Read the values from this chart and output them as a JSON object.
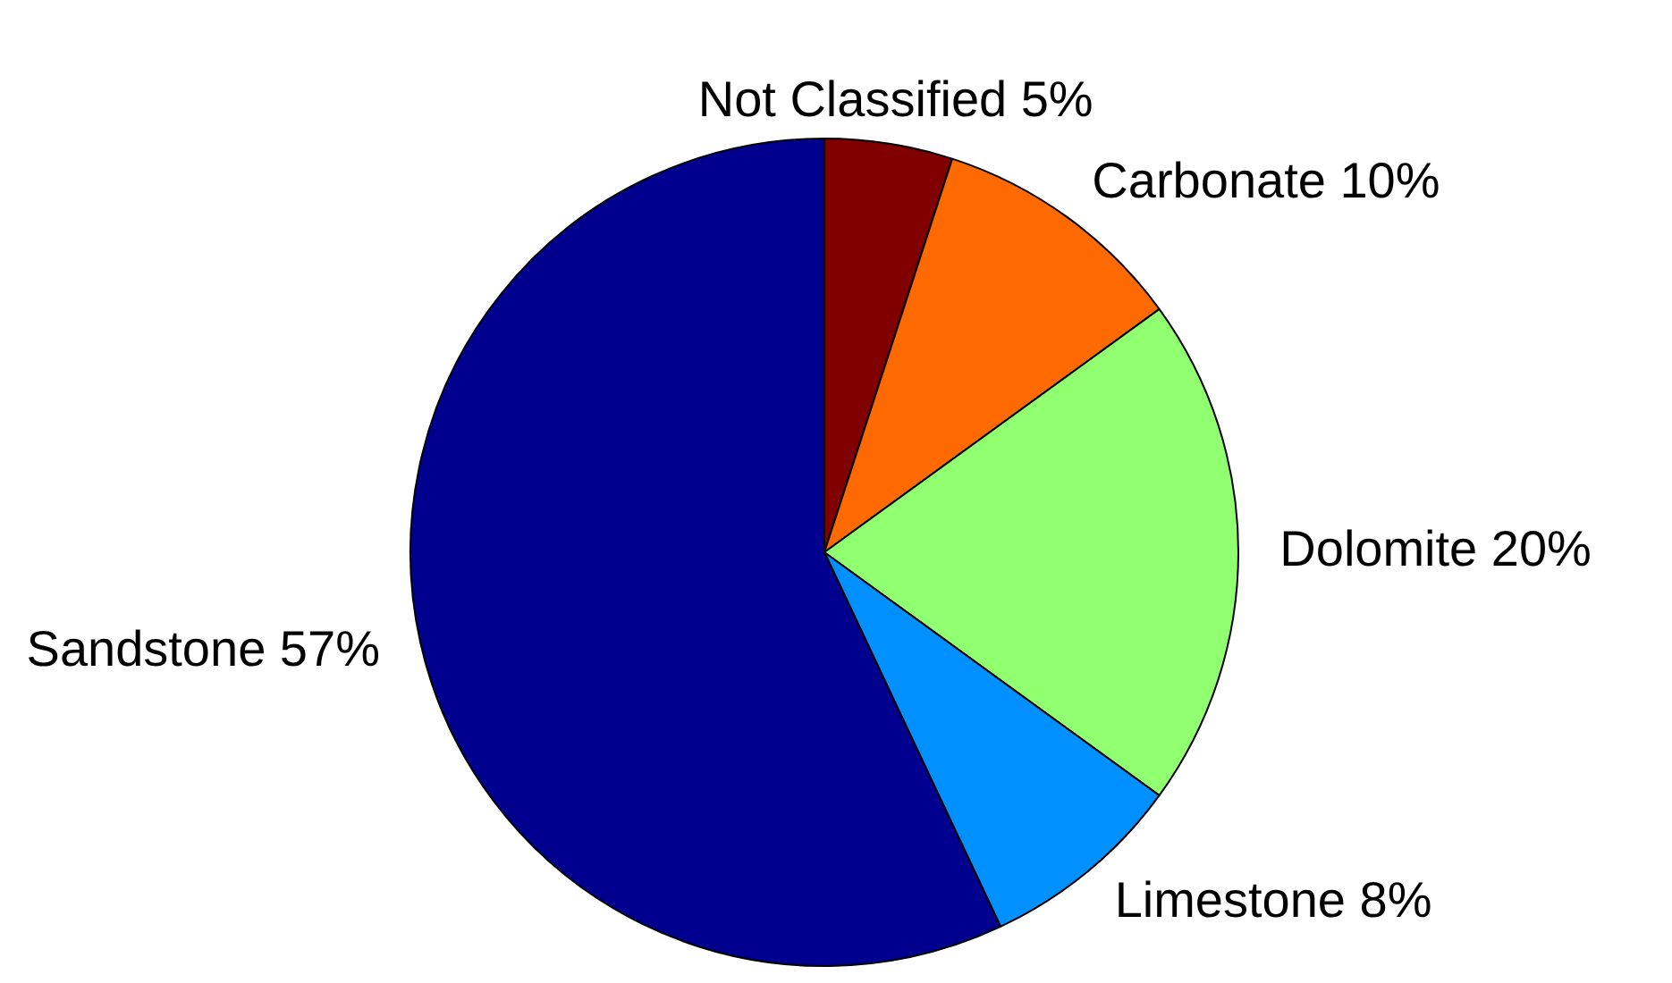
{
  "chart_data": {
    "type": "pie",
    "categories": [
      "Not Classified",
      "Carbonate",
      "Dolomite",
      "Limestone",
      "Sandstone"
    ],
    "values": [
      5,
      10,
      20,
      8,
      57
    ],
    "value_labels": [
      "5%",
      "10%",
      "20%",
      "8%",
      "57%"
    ],
    "colors": [
      "#800000",
      "#ff6a00",
      "#90ff70",
      "#0090ff",
      "#00008f"
    ],
    "legend": false
  }
}
